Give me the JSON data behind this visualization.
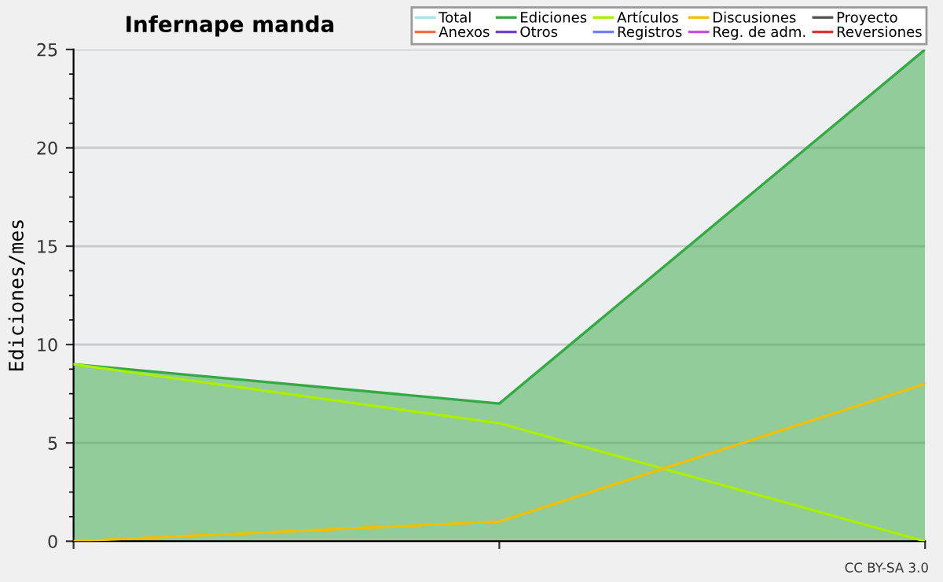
{
  "chart_data": {
    "type": "line",
    "title": "Infernape manda",
    "ylabel": "Ediciones/mes",
    "categories": [
      null,
      null,
      null
    ],
    "series": [
      {
        "name": "Total",
        "color": "#a8e4e0",
        "values": [
          null,
          null,
          null
        ]
      },
      {
        "name": "Ediciones",
        "color": "#33aa44",
        "type": "area",
        "values": [
          9,
          7,
          25
        ]
      },
      {
        "name": "Artículos",
        "color": "#aaee00",
        "values": [
          9,
          6,
          0
        ]
      },
      {
        "name": "Discusiones",
        "color": "#f0c000",
        "values": [
          0,
          1,
          8
        ]
      },
      {
        "name": "Proyecto",
        "color": "#555555",
        "values": [
          null,
          null,
          null
        ]
      },
      {
        "name": "Anexos",
        "color": "#f07040",
        "values": [
          null,
          null,
          null
        ]
      },
      {
        "name": "Otros",
        "color": "#7040d0",
        "values": [
          null,
          null,
          null
        ]
      },
      {
        "name": "Registros",
        "color": "#7080f0",
        "values": [
          null,
          null,
          null
        ]
      },
      {
        "name": "Reg. de adm.",
        "color": "#c050e0",
        "values": [
          null,
          null,
          null
        ]
      },
      {
        "name": "Reversiones",
        "color": "#e03030",
        "values": [
          null,
          null,
          null
        ]
      }
    ],
    "ylim": [
      0,
      25
    ],
    "yticks": [
      0,
      5,
      10,
      15,
      20,
      25
    ],
    "grid": "y",
    "legend": "top right",
    "annotations": [
      "CC BY-SA 3.0"
    ]
  }
}
